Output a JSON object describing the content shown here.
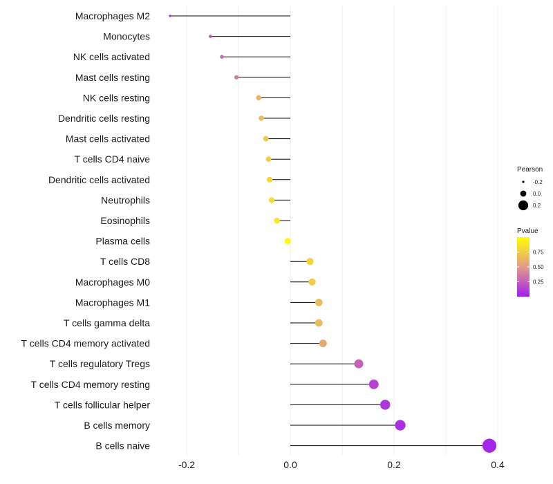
{
  "chart_data": {
    "type": "lollipop",
    "categories": [
      "Macrophages M2",
      "Monocytes",
      "NK cells activated",
      "Mast cells resting",
      "NK cells resting",
      "Dendritic cells resting",
      "Mast cells activated",
      "T cells CD4 naive",
      "Dendritic cells activated",
      "Neutrophils",
      "Eosinophils",
      "Plasma cells",
      "T cells CD8",
      "Macrophages M0",
      "Macrophages M1",
      "T cells gamma delta",
      "T cells CD4 memory activated",
      "T cells regulatory  Tregs ",
      "T cells CD4 memory resting",
      "T cells follicular helper",
      "B cells memory",
      "B cells naive"
    ],
    "pearson": [
      -0.232,
      -0.154,
      -0.132,
      -0.104,
      -0.061,
      -0.056,
      -0.047,
      -0.042,
      -0.04,
      -0.036,
      -0.026,
      -0.005,
      0.038,
      0.042,
      0.055,
      0.055,
      0.063,
      0.132,
      0.161,
      0.183,
      0.212,
      0.384
    ],
    "pvalue": [
      0.02,
      0.22,
      0.3,
      0.37,
      0.62,
      0.66,
      0.74,
      0.77,
      0.79,
      0.82,
      0.88,
      0.98,
      0.78,
      0.75,
      0.66,
      0.66,
      0.58,
      0.26,
      0.14,
      0.1,
      0.06,
      0.03
    ],
    "xlim": [
      -0.235,
      0.4
    ],
    "xticks": [
      -0.2,
      0.0,
      0.2,
      0.4
    ],
    "xtick_labels": [
      "-0.2",
      "0.0",
      "0.2",
      "0.4"
    ],
    "grid": true,
    "legend": {
      "size_title": "Pearson",
      "size_values": [
        -0.2,
        0.0,
        0.2
      ],
      "size_labels": [
        "-0.2",
        "0.0",
        "0.2"
      ],
      "color_title": "Pvalue",
      "color_ticks": [
        0.25,
        0.5,
        0.75
      ],
      "color_tick_labels": [
        "0.25",
        "0.50",
        "0.75"
      ],
      "color_range": [
        0.0,
        1.0
      ],
      "placement": "right"
    },
    "colors": {
      "low": "#a020f0",
      "mid": "#e39b88",
      "high": "#ffff00",
      "stem": "#000000"
    }
  }
}
